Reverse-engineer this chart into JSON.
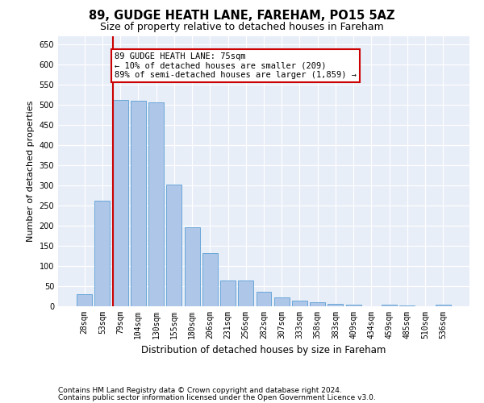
{
  "title1": "89, GUDGE HEATH LANE, FAREHAM, PO15 5AZ",
  "title2": "Size of property relative to detached houses in Fareham",
  "xlabel": "Distribution of detached houses by size in Fareham",
  "ylabel": "Number of detached properties",
  "categories": [
    "28sqm",
    "53sqm",
    "79sqm",
    "104sqm",
    "130sqm",
    "155sqm",
    "180sqm",
    "206sqm",
    "231sqm",
    "256sqm",
    "282sqm",
    "307sqm",
    "333sqm",
    "358sqm",
    "383sqm",
    "409sqm",
    "434sqm",
    "459sqm",
    "485sqm",
    "510sqm",
    "536sqm"
  ],
  "values": [
    30,
    263,
    512,
    510,
    507,
    302,
    196,
    132,
    65,
    65,
    37,
    22,
    15,
    10,
    7,
    5,
    1,
    5,
    2,
    1,
    5
  ],
  "bar_color": "#aec6e8",
  "bar_edge_color": "#5a9fd4",
  "vline_index": 2,
  "vline_color": "#cc0000",
  "annotation_text": "89 GUDGE HEATH LANE: 75sqm\n← 10% of detached houses are smaller (209)\n89% of semi-detached houses are larger (1,859) →",
  "annotation_box_color": "#ffffff",
  "annotation_box_edge_color": "#cc0000",
  "ylim": [
    0,
    670
  ],
  "yticks": [
    0,
    50,
    100,
    150,
    200,
    250,
    300,
    350,
    400,
    450,
    500,
    550,
    600,
    650
  ],
  "bg_color": "#e8eef8",
  "footer1": "Contains HM Land Registry data © Crown copyright and database right 2024.",
  "footer2": "Contains public sector information licensed under the Open Government Licence v3.0.",
  "title1_fontsize": 10.5,
  "title2_fontsize": 9,
  "xlabel_fontsize": 8.5,
  "ylabel_fontsize": 8,
  "tick_fontsize": 7,
  "annotation_fontsize": 7.5,
  "footer_fontsize": 6.5
}
